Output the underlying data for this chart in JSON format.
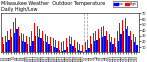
{
  "title": "Milwaukee Weather  Outdoor Temperature",
  "subtitle": "Daily High/Low",
  "legend_high": "High",
  "legend_low": "Low",
  "color_high": "#ff0000",
  "color_low": "#0000ff",
  "background": "#ffffff",
  "dates": [
    "1/1",
    "1/2",
    "1/3",
    "1/4",
    "1/5",
    "1/6",
    "1/7",
    "1/8",
    "1/9",
    "1/10",
    "1/11",
    "1/12",
    "1/13",
    "1/14",
    "1/15",
    "1/16",
    "1/17",
    "1/18",
    "1/19",
    "1/20",
    "1/21",
    "1/22",
    "1/23",
    "1/24",
    "1/25",
    "1/26",
    "1/27",
    "1/28",
    "1/29",
    "1/30",
    "1/31",
    "2/1",
    "2/2",
    "2/3",
    "2/4",
    "2/5",
    "2/6",
    "2/7",
    "2/8",
    "2/9",
    "2/10",
    "2/11",
    "2/12",
    "2/13",
    "2/14",
    "2/15",
    "2/16",
    "2/17",
    "2/18",
    "2/19",
    "2/20"
  ],
  "highs": [
    28,
    30,
    38,
    42,
    55,
    62,
    45,
    35,
    33,
    30,
    28,
    38,
    52,
    48,
    42,
    38,
    32,
    30,
    28,
    25,
    22,
    20,
    18,
    20,
    25,
    30,
    28,
    22,
    18,
    15,
    14,
    18,
    22,
    30,
    35,
    38,
    42,
    45,
    48,
    38,
    32,
    28,
    25,
    38,
    52,
    58,
    62,
    48,
    38,
    32,
    28
  ],
  "lows": [
    15,
    18,
    22,
    28,
    35,
    42,
    30,
    20,
    18,
    15,
    12,
    20,
    30,
    28,
    25,
    20,
    18,
    15,
    12,
    10,
    8,
    5,
    3,
    5,
    10,
    15,
    12,
    8,
    5,
    2,
    0,
    4,
    8,
    15,
    20,
    22,
    25,
    28,
    30,
    22,
    18,
    15,
    10,
    20,
    32,
    38,
    42,
    30,
    22,
    18,
    14
  ],
  "ylim": [
    0,
    70
  ],
  "yticks": [
    10,
    20,
    30,
    40,
    50,
    60,
    70
  ],
  "dashed_indices": [
    30.5,
    31.5
  ],
  "bar_width": 0.42,
  "title_fontsize": 3.5,
  "tick_fontsize": 2.5,
  "xtick_fontsize": 2.0
}
